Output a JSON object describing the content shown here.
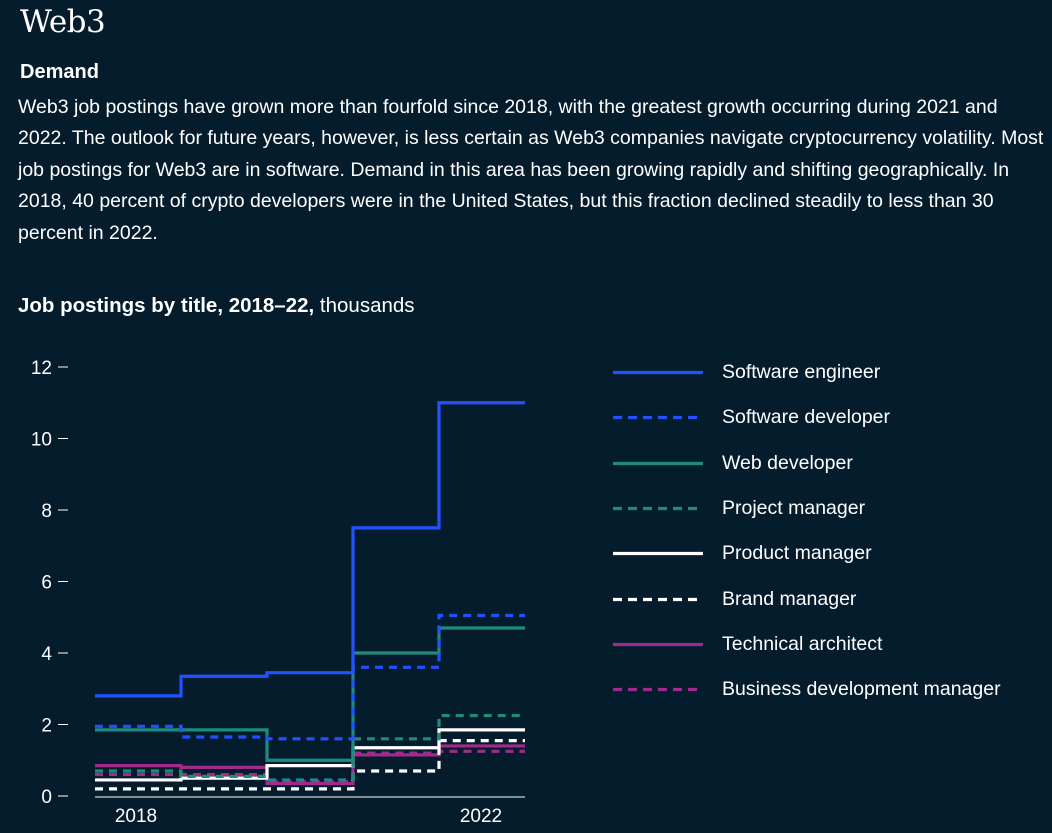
{
  "header": {
    "title": "Web3",
    "subhead": "Demand",
    "body": "Web3 job postings have grown more than fourfold since 2018, with the greatest growth occurring during 2021 and 2022. The outlook for future years, however, is less certain as Web3 companies navigate cryptocurrency volatility. Most job postings for Web3 are in software. Demand in this area has been growing rapidly and shifting geographically. In 2018, 40 percent of crypto developers were in the United States, but this fraction declined steadily to less than 30 percent in 2022."
  },
  "chart_title": {
    "bold": "Job postings by title, 2018–22,",
    "unit": " thousands"
  },
  "colors": {
    "background": "#051c2c",
    "blue": "#2251ff",
    "teal": "#1f8a7e",
    "white": "#ffffff",
    "purple": "#a12a8c"
  },
  "chart_data": {
    "type": "line",
    "step": true,
    "title": "Job postings by title, 2018–22, thousands",
    "xlabel": "",
    "ylabel": "",
    "x_ticks": [
      "2018",
      "2022"
    ],
    "periods": [
      0,
      1,
      2,
      3,
      4
    ],
    "ylim": [
      0,
      12
    ],
    "y_ticks": [
      0,
      2,
      4,
      6,
      8,
      10,
      12
    ],
    "legend_position": "right",
    "series": [
      {
        "name": "Software engineer",
        "color": "#2251ff",
        "dashed": false,
        "values": [
          2.8,
          3.35,
          3.45,
          7.5,
          11.0
        ]
      },
      {
        "name": "Software developer",
        "color": "#2251ff",
        "dashed": true,
        "values": [
          1.95,
          1.65,
          1.6,
          3.6,
          5.05
        ]
      },
      {
        "name": "Web developer",
        "color": "#1f8a7e",
        "dashed": false,
        "values": [
          1.85,
          1.85,
          1.0,
          4.0,
          4.7
        ]
      },
      {
        "name": "Project manager",
        "color": "#1f8a7e",
        "dashed": true,
        "values": [
          0.7,
          0.55,
          0.45,
          1.6,
          2.25
        ]
      },
      {
        "name": "Product manager",
        "color": "#ffffff",
        "dashed": false,
        "values": [
          0.45,
          0.5,
          0.85,
          1.35,
          1.85
        ]
      },
      {
        "name": "Brand manager",
        "color": "#ffffff",
        "dashed": true,
        "values": [
          0.2,
          0.2,
          0.2,
          0.7,
          1.55
        ]
      },
      {
        "name": "Technical architect",
        "color": "#a12a8c",
        "dashed": false,
        "values": [
          0.85,
          0.8,
          0.35,
          1.15,
          1.4
        ]
      },
      {
        "name": "Business development manager",
        "color": "#a12a8c",
        "dashed": true,
        "values": [
          0.6,
          0.6,
          0.4,
          1.2,
          1.25
        ]
      }
    ]
  }
}
